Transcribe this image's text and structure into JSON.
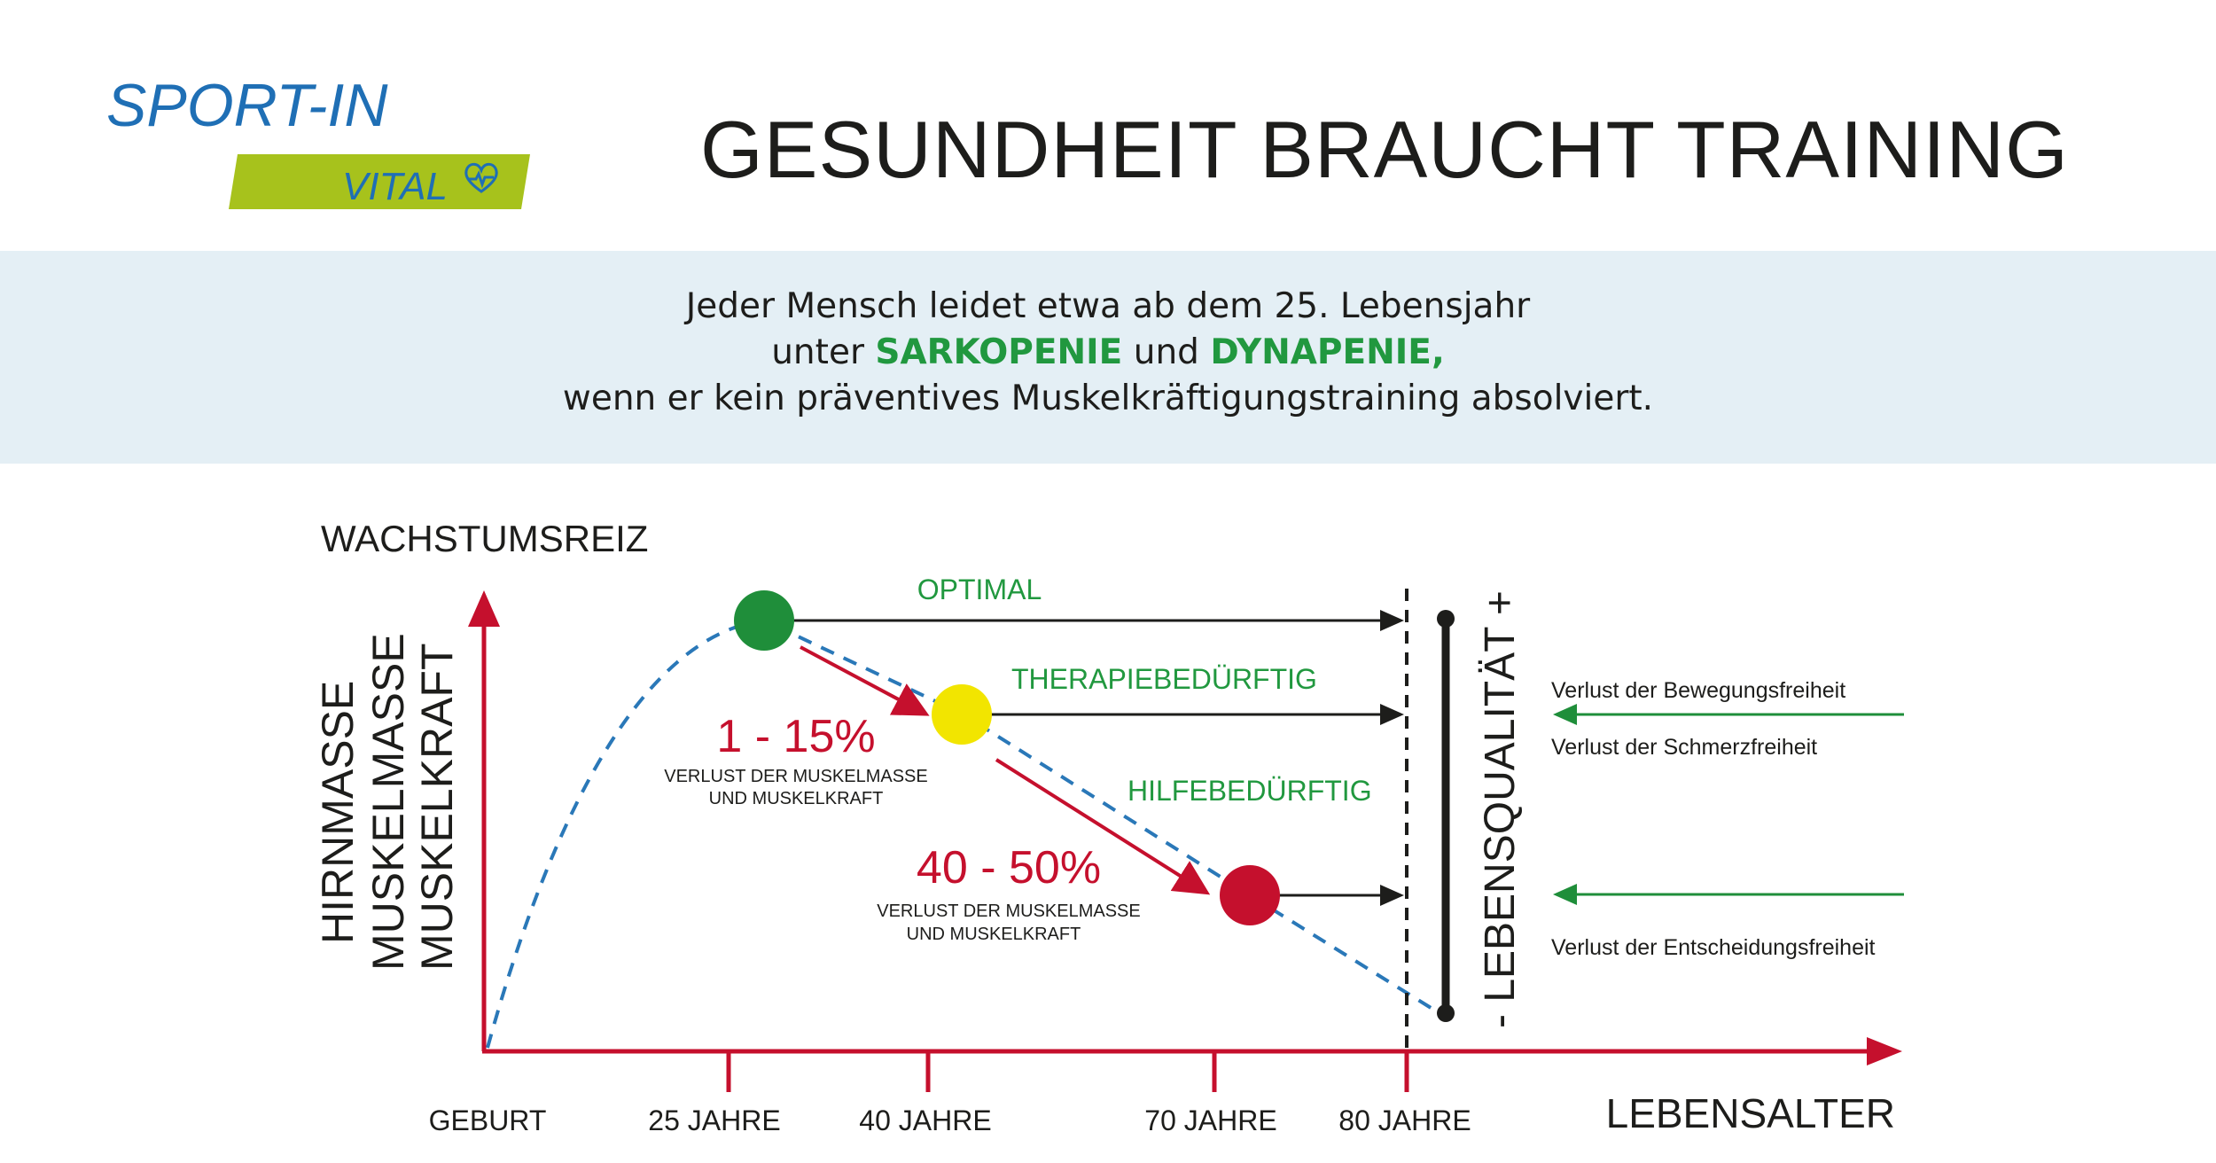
{
  "logo": {
    "brand": "SPORT-IN",
    "sub": "VITAL",
    "heart_icon": "heart-pulse-icon"
  },
  "title": "GESUNDHEIT BRAUCHT TRAINING",
  "banner": {
    "line1": "Jeder Mensch leidet etwa ab dem 25. Lebensjahr",
    "line2_prefix": "unter ",
    "line2_term1": "SARKOPENIE",
    "line2_mid": " und ",
    "line2_term2": "DYNAPENIE,",
    "line3": "wenn er kein präventives Muskelkräftigungstraining absolviert."
  },
  "diagram": {
    "y_axis_title": "WACHSTUMSREIZ",
    "y_axis_labels": [
      "HIRNMASSE",
      "MUSKELMASSE",
      "MUSKELKRAFT"
    ],
    "x_axis_title": "LEBENSALTER",
    "x_ticks": [
      "GEBURT",
      "25 JAHRE",
      "40 JAHRE",
      "70 JAHRE",
      "80 JAHRE"
    ],
    "states": [
      {
        "label": "OPTIMAL",
        "color": "#1f8e3a"
      },
      {
        "label": "THERAPIEBEDÜRFTIG",
        "color": "#f2e500"
      },
      {
        "label": "HILFEBEDÜRFTIG",
        "color": "#c5102d"
      }
    ],
    "losses": [
      {
        "percent": "1 - 15%",
        "line1": "VERLUST DER MUSKELMASSE",
        "line2": "UND MUSKELKRAFT"
      },
      {
        "percent": "40 - 50%",
        "line1": "VERLUST DER MUSKELMASSE",
        "line2": "UND MUSKELKRAFT"
      }
    ],
    "quality_label": "- LEBENSQUALITÄT +",
    "freedoms": [
      "Verlust der Bewegungsfreiheit",
      "Verlust der Schmerzfreiheit",
      "Verlust der Entscheidungsfreiheit"
    ],
    "colors": {
      "axis_red": "#c5102d",
      "curve_blue": "#2a78b8",
      "text_green": "#21983f",
      "arrow_green": "#1f8e3a",
      "brand_blue": "#1f6fb5",
      "brand_lime": "#a7c21c"
    }
  }
}
